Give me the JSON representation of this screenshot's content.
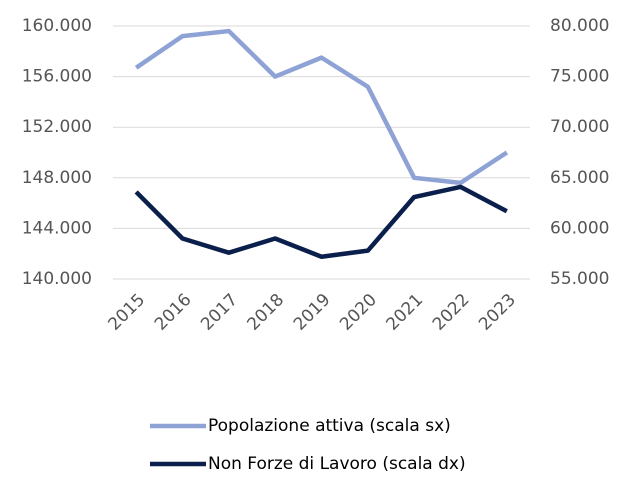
{
  "chart_data": {
    "type": "line",
    "categories": [
      "2015",
      "2016",
      "2017",
      "2018",
      "2019",
      "2020",
      "2021",
      "2022",
      "2023"
    ],
    "series": [
      {
        "name": "Popolazione attiva (scala sx)",
        "color": "#8ea2d6",
        "values": [
          156700,
          159200,
          159600,
          156000,
          157500,
          155200,
          148000,
          147600,
          150000
        ]
      },
      {
        "name": "Non Forze di Lavoro (scala dx)",
        "color": "#0b1f4d",
        "axis": "y2",
        "values": [
          63600,
          59000,
          57600,
          59000,
          57200,
          57800,
          63100,
          64100,
          61700
        ]
      }
    ],
    "ylim": [
      140000,
      160000
    ],
    "yticks": [
      {
        "value": 140000,
        "label": "140.000"
      },
      {
        "value": 144000,
        "label": "144.000"
      },
      {
        "value": 148000,
        "label": "148.000"
      },
      {
        "value": 152000,
        "label": "152.000"
      },
      {
        "value": 156000,
        "label": "156.000"
      },
      {
        "value": 160000,
        "label": "160.000"
      }
    ],
    "y2lim": [
      55000,
      80000
    ],
    "y2ticks": [
      {
        "value": 55000,
        "label": "55.000"
      },
      {
        "value": 60000,
        "label": "60.000"
      },
      {
        "value": 65000,
        "label": "65.000"
      },
      {
        "value": 70000,
        "label": "70.000"
      },
      {
        "value": 75000,
        "label": "75.000"
      },
      {
        "value": 80000,
        "label": "80.000"
      }
    ],
    "grid": true,
    "legend": "bottom"
  }
}
